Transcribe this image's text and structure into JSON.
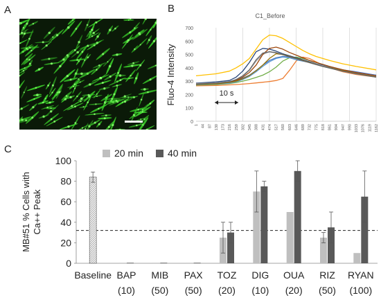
{
  "panels": {
    "a": "A",
    "b": "B",
    "c": "C"
  },
  "colors": {
    "cell_bg": "#0b1a08",
    "cell_fluor": "#3bd42a",
    "bar_20min": "#bfbfbf",
    "bar_40min": "#595959",
    "baseline_fill": "#d9d9d9",
    "threshold": "#222222"
  },
  "chart_data": [
    {
      "type": "image",
      "description_label": "",
      "scale_bar": true
    },
    {
      "type": "line",
      "title": "C1_Before",
      "ylabel": "Fluo-4 Intensity",
      "xlabel": "",
      "ylim": [
        0,
        700
      ],
      "yticks": [
        0,
        100,
        200,
        300,
        400,
        500,
        600,
        700
      ],
      "x_tick_labels": [
        "1",
        "44",
        "87",
        "130",
        "173",
        "216",
        "259",
        "302",
        "345",
        "388",
        "431",
        "474",
        "517",
        "560",
        "603",
        "646",
        "689",
        "732",
        "775",
        "818",
        "861",
        "904",
        "947",
        "990",
        "1033",
        "1076",
        "1119",
        "1162"
      ],
      "annotation": "10 s",
      "x_index": [
        0,
        3,
        5,
        6,
        7,
        8,
        9,
        10,
        11,
        12,
        13,
        14,
        15,
        16,
        17,
        18,
        19,
        20,
        22,
        24,
        27
      ],
      "series": [
        {
          "color": "#ffc000",
          "values": [
            340,
            355,
            375,
            400,
            430,
            470,
            540,
            610,
            645,
            640,
            620,
            590,
            560,
            530,
            505,
            485,
            470,
            455,
            430,
            410,
            385
          ]
        },
        {
          "color": "#ed7d31",
          "values": [
            265,
            268,
            272,
            275,
            278,
            282,
            287,
            292,
            297,
            305,
            320,
            380,
            450,
            480,
            470,
            445,
            420,
            400,
            370,
            350,
            330
          ]
        },
        {
          "color": "#70ad47",
          "values": [
            270,
            275,
            282,
            290,
            300,
            312,
            328,
            345,
            370,
            405,
            450,
            475,
            480,
            470,
            455,
            440,
            425,
            410,
            385,
            365,
            345
          ]
        },
        {
          "color": "#4472c4",
          "values": [
            280,
            285,
            295,
            305,
            322,
            345,
            380,
            420,
            455,
            475,
            485,
            480,
            470,
            455,
            445,
            430,
            420,
            408,
            385,
            370,
            345
          ]
        },
        {
          "color": "#264478",
          "values": [
            285,
            295,
            305,
            330,
            375,
            440,
            520,
            545,
            540,
            525,
            505,
            490,
            475,
            460,
            445,
            430,
            415,
            405,
            380,
            362,
            335
          ]
        },
        {
          "color": "#a5a5a5",
          "values": [
            282,
            288,
            298,
            310,
            335,
            380,
            450,
            500,
            520,
            515,
            500,
            485,
            470,
            455,
            440,
            428,
            415,
            402,
            380,
            362,
            338
          ]
        },
        {
          "color": "#9e480e",
          "values": [
            278,
            282,
            292,
            305,
            330,
            365,
            420,
            500,
            545,
            555,
            540,
            515,
            495,
            475,
            455,
            440,
            425,
            410,
            385,
            365,
            340
          ]
        },
        {
          "color": "#5b9bd5",
          "values": [
            272,
            278,
            285,
            295,
            312,
            335,
            370,
            410,
            445,
            470,
            480,
            475,
            460,
            450,
            440,
            425,
            410,
            398,
            375,
            355,
            330
          ]
        },
        {
          "color": "#997300",
          "values": [
            275,
            280,
            290,
            300,
            318,
            342,
            378,
            420,
            470,
            505,
            500,
            485,
            470,
            455,
            440,
            425,
            410,
            400,
            378,
            358,
            332
          ]
        },
        {
          "color": "#636363",
          "values": [
            278,
            285,
            295,
            312,
            340,
            385,
            460,
            510,
            520,
            512,
            498,
            482,
            468,
            452,
            438,
            424,
            410,
            398,
            375,
            356,
            330
          ]
        }
      ]
    },
    {
      "type": "bar",
      "ylabel_line1": "MB#51 % Cells with",
      "ylabel_line2": "Ca++ Peak",
      "ylim": [
        0,
        100
      ],
      "yticks": [
        0,
        20,
        40,
        60,
        80,
        100
      ],
      "threshold": 32,
      "categories": [
        "Baseline",
        "BAP",
        "MIB",
        "PAX",
        "TOZ",
        "DIG",
        "OUA",
        "RIZ",
        "RYAN"
      ],
      "doses": [
        "",
        "(10)",
        "(50)",
        "(50)",
        "(20)",
        "(10)",
        "(20)",
        "(50)",
        "(100)"
      ],
      "baseline": {
        "value": 84,
        "err": 5
      },
      "series": [
        {
          "name": "20 min",
          "values": [
            null,
            0.5,
            0.5,
            0.5,
            25,
            70,
            50,
            25,
            10
          ],
          "err": [
            null,
            0,
            0,
            0,
            15,
            20,
            0,
            5,
            0
          ]
        },
        {
          "name": "40 min",
          "values": [
            null,
            0.5,
            0.5,
            0.5,
            30,
            75,
            90,
            35,
            65
          ],
          "err": [
            null,
            0,
            0,
            0,
            10,
            5,
            10,
            15,
            25
          ]
        }
      ]
    }
  ]
}
